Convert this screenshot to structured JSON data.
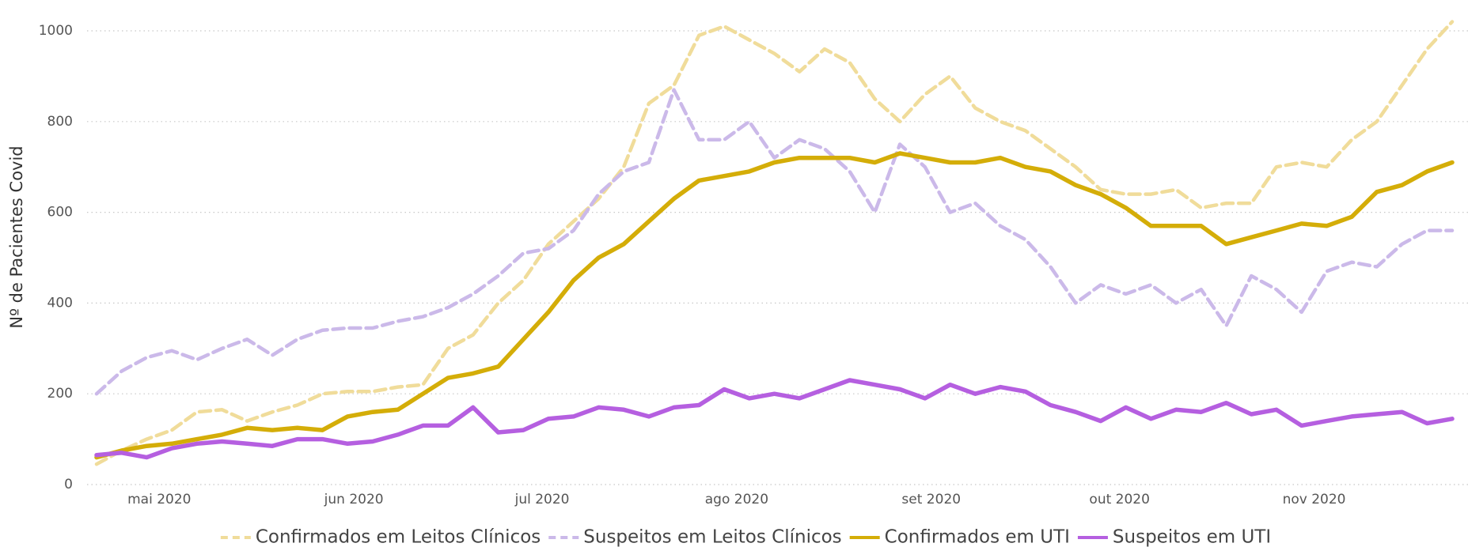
{
  "chart_data": {
    "type": "line",
    "y_label": "Nº de Pacientes Covid",
    "x": [
      "2020-04-21",
      "2020-04-25",
      "2020-04-29",
      "2020-05-03",
      "2020-05-07",
      "2020-05-11",
      "2020-05-15",
      "2020-05-19",
      "2020-05-23",
      "2020-05-27",
      "2020-05-31",
      "2020-06-04",
      "2020-06-08",
      "2020-06-12",
      "2020-06-16",
      "2020-06-20",
      "2020-06-24",
      "2020-06-28",
      "2020-07-02",
      "2020-07-06",
      "2020-07-10",
      "2020-07-14",
      "2020-07-18",
      "2020-07-22",
      "2020-07-26",
      "2020-07-30",
      "2020-08-03",
      "2020-08-07",
      "2020-08-11",
      "2020-08-15",
      "2020-08-19",
      "2020-08-23",
      "2020-08-27",
      "2020-08-31",
      "2020-09-04",
      "2020-09-08",
      "2020-09-12",
      "2020-09-16",
      "2020-09-20",
      "2020-09-24",
      "2020-09-28",
      "2020-10-02",
      "2020-10-06",
      "2020-10-10",
      "2020-10-14",
      "2020-10-18",
      "2020-10-22",
      "2020-10-26",
      "2020-10-30",
      "2020-11-03",
      "2020-11-07",
      "2020-11-11",
      "2020-11-15",
      "2020-11-19",
      "2020-11-23"
    ],
    "series": [
      {
        "name": "Confirmados em Leitos Clínicos",
        "color": "#f0dc9a",
        "dashed": true,
        "values": [
          45,
          75,
          100,
          120,
          160,
          165,
          140,
          160,
          175,
          200,
          205,
          205,
          215,
          220,
          300,
          330,
          400,
          450,
          530,
          580,
          630,
          700,
          840,
          880,
          990,
          1010,
          980,
          950,
          910,
          960,
          930,
          850,
          800,
          860,
          900,
          830,
          800,
          780,
          740,
          700,
          650,
          640,
          640,
          650,
          610,
          620,
          620,
          700,
          710,
          700,
          760,
          800,
          880,
          960,
          1020
        ]
      },
      {
        "name": "Suspeitos em Leitos Clínicos",
        "color": "#cbb9e9",
        "dashed": true,
        "values": [
          200,
          250,
          280,
          295,
          275,
          300,
          320,
          285,
          320,
          340,
          345,
          345,
          360,
          370,
          390,
          420,
          460,
          510,
          520,
          560,
          640,
          690,
          710,
          870,
          760,
          760,
          800,
          720,
          760,
          740,
          690,
          600,
          750,
          700,
          600,
          620,
          570,
          540,
          480,
          400,
          440,
          420,
          440,
          400,
          430,
          350,
          460,
          430,
          380,
          470,
          490,
          480,
          530,
          560,
          560
        ]
      },
      {
        "name": "Confirmados em UTI",
        "color": "#d4ad08",
        "dashed": false,
        "values": [
          60,
          75,
          85,
          90,
          100,
          110,
          125,
          120,
          125,
          120,
          150,
          160,
          165,
          200,
          235,
          245,
          260,
          320,
          380,
          450,
          500,
          530,
          580,
          630,
          670,
          680,
          690,
          710,
          720,
          720,
          720,
          710,
          730,
          720,
          710,
          710,
          720,
          700,
          690,
          660,
          640,
          610,
          570,
          570,
          570,
          530,
          545,
          560,
          575,
          570,
          590,
          645,
          660,
          690,
          710
        ]
      },
      {
        "name": "Suspeitos em UTI",
        "color": "#b55fe0",
        "dashed": false,
        "values": [
          65,
          70,
          60,
          80,
          90,
          95,
          90,
          85,
          100,
          100,
          90,
          95,
          110,
          130,
          130,
          170,
          115,
          120,
          145,
          150,
          170,
          165,
          150,
          170,
          175,
          210,
          190,
          200,
          190,
          210,
          230,
          220,
          210,
          190,
          220,
          200,
          215,
          205,
          175,
          160,
          140,
          170,
          145,
          165,
          160,
          180,
          155,
          165,
          130,
          140,
          150,
          155,
          160,
          135,
          145
        ]
      }
    ],
    "xlim": [
      "2020-04-21",
      "2020-11-23"
    ],
    "xticks": [
      {
        "value": "2020-05-01",
        "label": "mai 2020"
      },
      {
        "value": "2020-06-01",
        "label": "jun 2020"
      },
      {
        "value": "2020-07-01",
        "label": "jul 2020"
      },
      {
        "value": "2020-08-01",
        "label": "ago 2020"
      },
      {
        "value": "2020-09-01",
        "label": "set 2020"
      },
      {
        "value": "2020-10-01",
        "label": "out 2020"
      },
      {
        "value": "2020-11-01",
        "label": "nov 2020"
      }
    ],
    "ylim": [
      0,
      1050
    ],
    "yticks": [
      0,
      200,
      400,
      600,
      800,
      1000
    ],
    "grid": true,
    "legend": "bottom"
  }
}
